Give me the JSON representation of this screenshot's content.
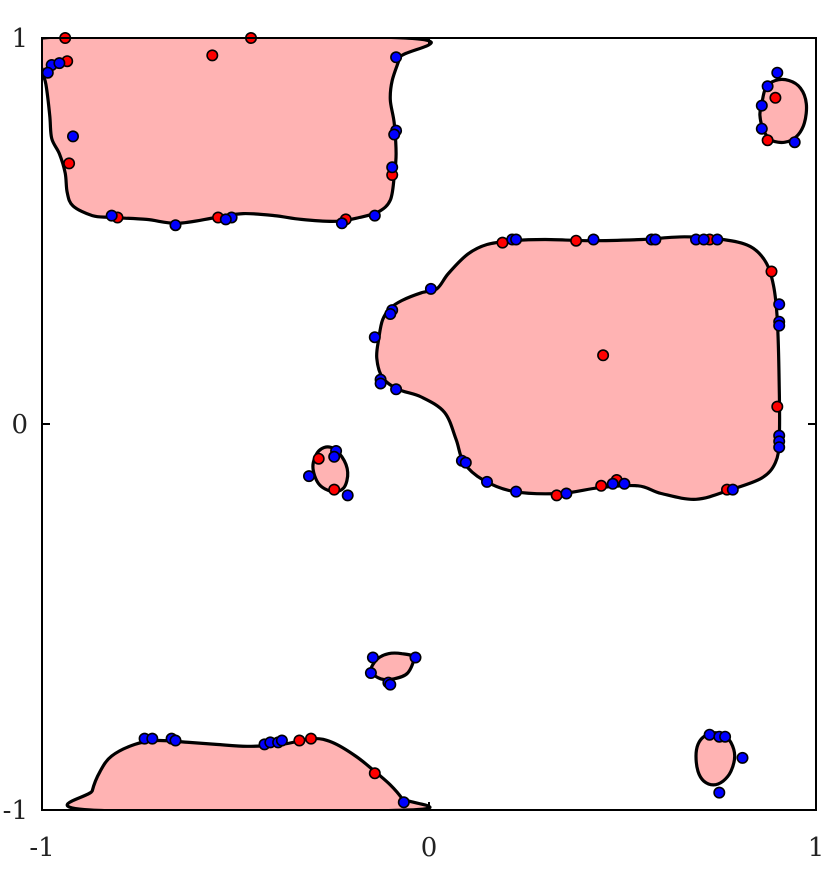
{
  "chart_data": {
    "type": "scatter",
    "title": "",
    "xlabel": "",
    "ylabel": "",
    "xlim": [
      -1,
      1
    ],
    "ylim": [
      -1,
      1
    ],
    "xticks": [
      -1,
      0,
      1
    ],
    "yticks": [
      -1,
      0,
      1
    ],
    "x_tick_labels": [
      "-1",
      "0",
      "1"
    ],
    "y_tick_labels": [
      "-1",
      "0",
      "1"
    ],
    "grid": false,
    "colors": {
      "region_fill": "#ffb3b3",
      "region_edge": "#000000",
      "red_point": "#ff0000",
      "blue_point": "#0000ff"
    },
    "regions": [
      {
        "name": "",
        "boundary": [
          [
            -1,
            0.92
          ],
          [
            -0.99,
            0.88
          ],
          [
            -0.98,
            0.8
          ],
          [
            -0.975,
            0.74
          ],
          [
            -0.955,
            0.7
          ],
          [
            -0.94,
            0.65
          ],
          [
            -0.935,
            0.6
          ],
          [
            -0.92,
            0.565
          ],
          [
            -0.87,
            0.54
          ],
          [
            -0.82,
            0.535
          ],
          [
            -0.73,
            0.53
          ],
          [
            -0.65,
            0.52
          ],
          [
            -0.55,
            0.535
          ],
          [
            -0.48,
            0.545
          ],
          [
            -0.4,
            0.54
          ],
          [
            -0.33,
            0.53
          ],
          [
            -0.24,
            0.525
          ],
          [
            -0.18,
            0.535
          ],
          [
            -0.13,
            0.55
          ],
          [
            -0.1,
            0.58
          ],
          [
            -0.09,
            0.64
          ],
          [
            -0.085,
            0.7
          ],
          [
            -0.09,
            0.78
          ],
          [
            -0.1,
            0.84
          ],
          [
            -0.095,
            0.89
          ],
          [
            -0.075,
            0.95
          ],
          [
            -0.06,
            1.0
          ],
          [
            -1,
            1.0
          ]
        ]
      },
      {
        "name": "",
        "boundary": [
          [
            0.86,
            0.83
          ],
          [
            0.87,
            0.87
          ],
          [
            0.895,
            0.89
          ],
          [
            0.93,
            0.89
          ],
          [
            0.96,
            0.87
          ],
          [
            0.975,
            0.83
          ],
          [
            0.97,
            0.78
          ],
          [
            0.95,
            0.745
          ],
          [
            0.92,
            0.73
          ],
          [
            0.885,
            0.735
          ],
          [
            0.865,
            0.76
          ],
          [
            0.855,
            0.8
          ]
        ]
      },
      {
        "name": "",
        "boundary": [
          [
            -0.13,
            0.22
          ],
          [
            -0.12,
            0.27
          ],
          [
            -0.1,
            0.3
          ],
          [
            -0.07,
            0.32
          ],
          [
            -0.02,
            0.34
          ],
          [
            0.02,
            0.35
          ],
          [
            0.05,
            0.39
          ],
          [
            0.1,
            0.44
          ],
          [
            0.15,
            0.465
          ],
          [
            0.22,
            0.475
          ],
          [
            0.3,
            0.478
          ],
          [
            0.42,
            0.475
          ],
          [
            0.55,
            0.478
          ],
          [
            0.66,
            0.485
          ],
          [
            0.76,
            0.478
          ],
          [
            0.83,
            0.46
          ],
          [
            0.87,
            0.42
          ],
          [
            0.89,
            0.36
          ],
          [
            0.9,
            0.27
          ],
          [
            0.905,
            0.1
          ],
          [
            0.905,
            -0.04
          ],
          [
            0.895,
            -0.1
          ],
          [
            0.86,
            -0.14
          ],
          [
            0.78,
            -0.17
          ],
          [
            0.69,
            -0.195
          ],
          [
            0.6,
            -0.18
          ],
          [
            0.54,
            -0.16
          ],
          [
            0.44,
            -0.165
          ],
          [
            0.34,
            -0.18
          ],
          [
            0.22,
            -0.175
          ],
          [
            0.14,
            -0.145
          ],
          [
            0.09,
            -0.1
          ],
          [
            0.07,
            -0.04
          ],
          [
            0.04,
            0.03
          ],
          [
            -0.02,
            0.07
          ],
          [
            -0.08,
            0.09
          ],
          [
            -0.12,
            0.12
          ],
          [
            -0.135,
            0.17
          ]
        ]
      },
      {
        "name": "",
        "boundary": [
          [
            -0.3,
            -0.11
          ],
          [
            -0.285,
            -0.07
          ],
          [
            -0.255,
            -0.06
          ],
          [
            -0.225,
            -0.085
          ],
          [
            -0.21,
            -0.125
          ],
          [
            -0.22,
            -0.165
          ],
          [
            -0.25,
            -0.175
          ],
          [
            -0.285,
            -0.155
          ]
        ]
      },
      {
        "name": "",
        "boundary": [
          [
            -0.15,
            -0.64
          ],
          [
            -0.135,
            -0.61
          ],
          [
            -0.105,
            -0.595
          ],
          [
            -0.07,
            -0.595
          ],
          [
            -0.04,
            -0.605
          ],
          [
            -0.055,
            -0.645
          ],
          [
            -0.09,
            -0.66
          ],
          [
            -0.125,
            -0.66
          ]
        ]
      },
      {
        "name": "",
        "boundary": [
          [
            -0.875,
            -1.0
          ],
          [
            -0.87,
            -0.95
          ],
          [
            -0.85,
            -0.9
          ],
          [
            -0.82,
            -0.86
          ],
          [
            -0.76,
            -0.83
          ],
          [
            -0.7,
            -0.82
          ],
          [
            -0.62,
            -0.825
          ],
          [
            -0.55,
            -0.83
          ],
          [
            -0.47,
            -0.835
          ],
          [
            -0.38,
            -0.83
          ],
          [
            -0.3,
            -0.815
          ],
          [
            -0.25,
            -0.825
          ],
          [
            -0.19,
            -0.86
          ],
          [
            -0.14,
            -0.9
          ],
          [
            -0.1,
            -0.935
          ],
          [
            -0.07,
            -0.97
          ],
          [
            -0.055,
            -1.0
          ]
        ]
      },
      {
        "name": "",
        "boundary": [
          [
            0.69,
            -0.86
          ],
          [
            0.695,
            -0.83
          ],
          [
            0.71,
            -0.81
          ],
          [
            0.735,
            -0.8
          ],
          [
            0.76,
            -0.805
          ],
          [
            0.78,
            -0.825
          ],
          [
            0.79,
            -0.86
          ],
          [
            0.78,
            -0.9
          ],
          [
            0.76,
            -0.925
          ],
          [
            0.735,
            -0.935
          ],
          [
            0.71,
            -0.925
          ],
          [
            0.695,
            -0.9
          ]
        ]
      }
    ],
    "series": [
      {
        "name": "",
        "color": "red",
        "points": [
          [
            -0.94,
            1.0
          ],
          [
            -0.46,
            1.0
          ],
          [
            -0.56,
            0.955
          ],
          [
            -0.935,
            0.94
          ],
          [
            -0.93,
            0.675
          ],
          [
            -0.805,
            0.535
          ],
          [
            -0.545,
            0.535
          ],
          [
            -0.215,
            0.53
          ],
          [
            -0.095,
            0.645
          ],
          [
            0.895,
            0.845
          ],
          [
            0.875,
            0.735
          ],
          [
            0.19,
            0.47
          ],
          [
            0.38,
            0.475
          ],
          [
            0.725,
            0.478
          ],
          [
            0.885,
            0.395
          ],
          [
            0.45,
            0.178
          ],
          [
            0.9,
            0.045
          ],
          [
            0.33,
            -0.185
          ],
          [
            0.445,
            -0.16
          ],
          [
            0.485,
            -0.145
          ],
          [
            0.77,
            -0.17
          ],
          [
            -0.285,
            -0.09
          ],
          [
            -0.245,
            -0.17
          ],
          [
            -0.305,
            -0.815
          ],
          [
            -0.335,
            -0.82
          ],
          [
            -0.14,
            -0.905
          ]
        ]
      },
      {
        "name": "",
        "color": "blue",
        "points": [
          [
            -0.975,
            0.93
          ],
          [
            -0.985,
            0.91
          ],
          [
            -0.955,
            0.935
          ],
          [
            -0.92,
            0.745
          ],
          [
            -0.82,
            0.54
          ],
          [
            -0.51,
            0.535
          ],
          [
            -0.655,
            0.515
          ],
          [
            -0.525,
            0.53
          ],
          [
            -0.225,
            0.52
          ],
          [
            -0.14,
            0.54
          ],
          [
            -0.085,
            0.95
          ],
          [
            -0.085,
            0.76
          ],
          [
            -0.09,
            0.75
          ],
          [
            -0.095,
            0.665
          ],
          [
            0.9,
            0.91
          ],
          [
            0.875,
            0.875
          ],
          [
            0.86,
            0.825
          ],
          [
            0.86,
            0.765
          ],
          [
            0.945,
            0.73
          ],
          [
            0.215,
            0.478
          ],
          [
            0.225,
            0.478
          ],
          [
            0.425,
            0.478
          ],
          [
            0.575,
            0.478
          ],
          [
            0.585,
            0.478
          ],
          [
            0.69,
            0.478
          ],
          [
            0.71,
            0.478
          ],
          [
            0.745,
            0.478
          ],
          [
            0.005,
            0.35
          ],
          [
            -0.095,
            0.295
          ],
          [
            -0.1,
            0.285
          ],
          [
            -0.14,
            0.225
          ],
          [
            -0.125,
            0.115
          ],
          [
            -0.125,
            0.105
          ],
          [
            -0.085,
            0.09
          ],
          [
            0.905,
            0.31
          ],
          [
            0.905,
            0.265
          ],
          [
            0.905,
            0.255
          ],
          [
            0.905,
            -0.03
          ],
          [
            0.905,
            -0.045
          ],
          [
            0.905,
            -0.06
          ],
          [
            0.085,
            -0.095
          ],
          [
            0.095,
            -0.1
          ],
          [
            0.15,
            -0.15
          ],
          [
            0.225,
            -0.175
          ],
          [
            0.355,
            -0.18
          ],
          [
            0.475,
            -0.155
          ],
          [
            0.505,
            -0.155
          ],
          [
            0.785,
            -0.17
          ],
          [
            -0.31,
            -0.135
          ],
          [
            -0.24,
            -0.07
          ],
          [
            -0.245,
            -0.085
          ],
          [
            -0.21,
            -0.185
          ],
          [
            -0.145,
            -0.605
          ],
          [
            -0.15,
            -0.645
          ],
          [
            -0.105,
            -0.67
          ],
          [
            -0.1,
            -0.675
          ],
          [
            -0.035,
            -0.605
          ],
          [
            -0.735,
            -0.815
          ],
          [
            -0.715,
            -0.815
          ],
          [
            -0.665,
            -0.815
          ],
          [
            -0.655,
            -0.82
          ],
          [
            -0.425,
            -0.83
          ],
          [
            -0.41,
            -0.825
          ],
          [
            -0.39,
            -0.825
          ],
          [
            -0.38,
            -0.82
          ],
          [
            -0.065,
            -0.98
          ],
          [
            0.725,
            -0.805
          ],
          [
            0.75,
            -0.81
          ],
          [
            0.765,
            -0.81
          ],
          [
            0.81,
            -0.865
          ],
          [
            0.75,
            -0.955
          ]
        ]
      }
    ]
  }
}
